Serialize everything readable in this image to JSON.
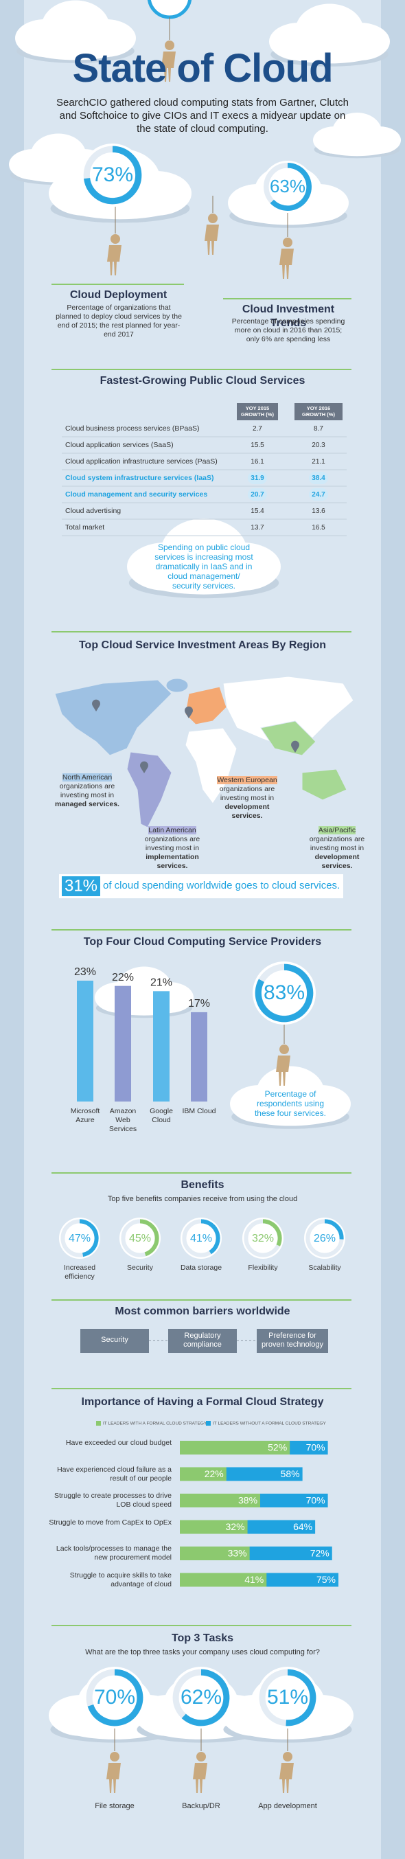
{
  "header": {
    "title": "State of Cloud",
    "subtitle": "SearchCIO gathered cloud computing stats from Gartner, Clutch and Softchoice to give CIOs and IT execs a midyear update on the state of cloud computing."
  },
  "deployment": {
    "value": 73,
    "value_label": "73%",
    "heading": "Cloud Deployment",
    "text": "Percentage of organizations that planned to deploy cloud services by the end of 2015; the rest planned for year-end 2017",
    "color": "#2aa7e1"
  },
  "investment": {
    "value": 63,
    "value_label": "63%",
    "heading": "Cloud Investment Trends",
    "text": "Percentage of companies spending more on cloud in 2016 than 2015; only 6% are spending less",
    "color": "#2aa7e1"
  },
  "growth": {
    "title": "Fastest-Growing Public Cloud Services",
    "columns": [
      "YOY 2015 GROWTH (%)",
      "YOY 2016 GROWTH (%)"
    ],
    "rows": [
      [
        "Cloud business process services (BPaaS)",
        2.7,
        8.7
      ],
      [
        "Cloud application services (SaaS)",
        15.5,
        20.3
      ],
      [
        "Cloud application infrastructure services (PaaS)",
        16.1,
        21.1
      ],
      [
        "Cloud system infrastructure services (IaaS)",
        31.9,
        38.4
      ],
      [
        "Cloud management and security services",
        20.7,
        24.7
      ],
      [
        "Cloud advertising",
        15.4,
        13.6
      ],
      [
        "Total market",
        13.7,
        16.5
      ]
    ],
    "highlight": [
      3,
      4
    ],
    "note": "Spending on public cloud services is increasing most dramatically in IaaS and in cloud management/ security services."
  },
  "regions": {
    "title": "Top Cloud Service Investment Areas By Region",
    "items": [
      {
        "name": "North American",
        "text": "organizations are investing most in",
        "focus": "managed services.",
        "color": "#a9cbe9"
      },
      {
        "name": "Latin American",
        "text": "organizations are investing most in",
        "focus": "implementation services.",
        "color": "#b1b4df"
      },
      {
        "name": "Western European",
        "text": "organizations are investing most in",
        "focus": "development services.",
        "color": "#f6b488"
      },
      {
        "name": "Asia/Pacific",
        "text": "organizations are investing most in",
        "focus": "development services.",
        "color": "#aedc9c"
      }
    ],
    "share": {
      "value": 31,
      "value_label": "31%",
      "text": "of cloud spending worldwide goes to cloud services.",
      "color": "#2aa7e1"
    }
  },
  "providers_share": {
    "value": 83,
    "value_label": "83%",
    "text": "Percentage of respondents using these four services.",
    "color": "#2aa7e1"
  },
  "barriers": {
    "title": "Most common barriers worldwide",
    "items": [
      "Security",
      "Regulatory compliance",
      "Preference for proven technology"
    ]
  },
  "chart_data": [
    {
      "type": "bar",
      "title": "Top Four Cloud Computing Service Providers",
      "categories": [
        "Microsoft Azure",
        "Amazon Web Services",
        "Google Cloud",
        "IBM Cloud"
      ],
      "values": [
        23,
        22,
        21,
        17
      ],
      "value_labels": [
        "23%",
        "22%",
        "21%",
        "17%"
      ],
      "colors": [
        "#5ab9ea",
        "#8e9bd2",
        "#5ab9ea",
        "#8e9bd2"
      ]
    },
    {
      "type": "donut",
      "title": "Benefits",
      "subtitle": "Top five benefits companies receive from using the cloud",
      "categories": [
        "Increased efficiency",
        "Security",
        "Data storage",
        "Flexibility",
        "Scalability"
      ],
      "values": [
        47,
        45,
        41,
        32,
        26
      ],
      "value_labels": [
        "47%",
        "45%",
        "41%",
        "32%",
        "26%"
      ],
      "colors": [
        "#2aa7e1",
        "#8cc96f",
        "#2aa7e1",
        "#8cc96f",
        "#2aa7e1"
      ]
    },
    {
      "type": "barh",
      "title": "Importance of Having a Formal Cloud Strategy",
      "categories": [
        "Have exceeded our cloud budget",
        "Have experienced cloud failure as a result of our people",
        "Struggle to create processes to drive LOB cloud speed",
        "Struggle to move from CapEx to OpEx",
        "Lack tools/processes to manage the new procurement model",
        "Struggle to acquire skills to take advantage of cloud"
      ],
      "series": [
        {
          "name": "IT LEADERS WITH A FORMAL CLOUD STRATEGY",
          "color": "#8cc96f",
          "values": [
            52,
            22,
            38,
            32,
            33,
            41
          ],
          "value_labels": [
            "52%",
            "22%",
            "38%",
            "32%",
            "33%",
            "41%"
          ]
        },
        {
          "name": "IT LEADERS WITHOUT A FORMAL CLOUD STRATEGY",
          "color": "#1fa3e0",
          "values": [
            70,
            58,
            70,
            64,
            72,
            75
          ],
          "value_labels": [
            "70%",
            "58%",
            "70%",
            "64%",
            "72%",
            "75%"
          ]
        }
      ]
    },
    {
      "type": "donut",
      "title": "Top 3 Tasks",
      "subtitle": "What are the top three tasks your company uses cloud computing for?",
      "categories": [
        "File storage",
        "Backup/DR",
        "App development"
      ],
      "values": [
        70,
        62,
        51
      ],
      "value_labels": [
        "70%",
        "62%",
        "51%"
      ],
      "colors": [
        "#2aa7e1",
        "#2aa7e1",
        "#2aa7e1"
      ]
    }
  ]
}
